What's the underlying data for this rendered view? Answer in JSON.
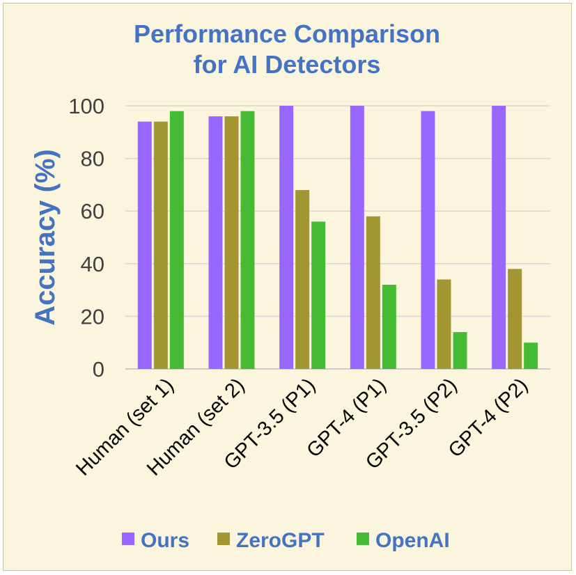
{
  "chart_data": {
    "type": "bar",
    "title_lines": [
      "Performance Comparison",
      "for AI Detectors"
    ],
    "xlabel": "",
    "ylabel": "Accuracy (%)",
    "ylim": [
      0,
      100
    ],
    "yticks": [
      0,
      20,
      40,
      60,
      80,
      100
    ],
    "grid": true,
    "legend_position": "bottom",
    "categories": [
      "Human (set 1)",
      "Human (set 2)",
      "GPT-3.5 (P1)",
      "GPT-4 (P1)",
      "GPT-3.5 (P2)",
      "GPT-4 (P2)"
    ],
    "series": [
      {
        "name": "Ours",
        "color": "#9966FF",
        "values": [
          94,
          96,
          100,
          100,
          98,
          100
        ]
      },
      {
        "name": "ZeroGPT",
        "color": "#A39531",
        "values": [
          94,
          96,
          68,
          58,
          34,
          38
        ]
      },
      {
        "name": "OpenAI",
        "color": "#44BB33",
        "values": [
          98,
          98,
          56,
          32,
          14,
          10
        ]
      }
    ]
  }
}
